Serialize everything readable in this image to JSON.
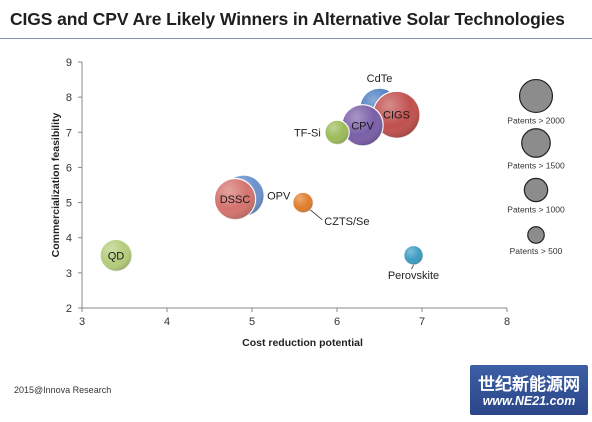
{
  "title": "CIGS and CPV Are Likely Winners in Alternative Solar Technologies",
  "footer": "2015@Innova Research",
  "brand": {
    "cn": "世纪新能源网",
    "url": "www.NE21.com"
  },
  "chart_data": {
    "type": "scatter",
    "xlabel": "Cost reduction potential",
    "ylabel": "Commercialization feasibility",
    "xlim": [
      3,
      8
    ],
    "ylim": [
      2,
      9
    ],
    "xticks": [
      3,
      4,
      5,
      6,
      7,
      8
    ],
    "yticks": [
      2,
      3,
      4,
      5,
      6,
      7,
      8,
      9
    ],
    "grid": false,
    "points": [
      {
        "label": "CdTe",
        "x": 6.5,
        "y": 7.7,
        "size": 1800,
        "color": "#4a7cc0",
        "label_pos": "above"
      },
      {
        "label": "CIGS",
        "x": 6.7,
        "y": 7.5,
        "size": 2600,
        "color": "#c0504d",
        "label_pos": "inside"
      },
      {
        "label": "CPV",
        "x": 6.3,
        "y": 7.2,
        "size": 2000,
        "color": "#7a5fa8",
        "label_pos": "inside"
      },
      {
        "label": "TF-Si",
        "x": 6.0,
        "y": 7.0,
        "size": 700,
        "color": "#9bbb59",
        "label_pos": "left"
      },
      {
        "label": "OPV",
        "x": 4.9,
        "y": 5.2,
        "size": 2000,
        "color": "#6b92cf",
        "label_pos": "right"
      },
      {
        "label": "DSSC",
        "x": 4.8,
        "y": 5.1,
        "size": 2000,
        "color": "#d4736e",
        "label_pos": "inside"
      },
      {
        "label": "CZTS/Se",
        "x": 5.6,
        "y": 5.0,
        "size": 500,
        "color": "#e07d2c",
        "label_pos": "below-right"
      },
      {
        "label": "QD",
        "x": 3.4,
        "y": 3.5,
        "size": 1200,
        "color": "#b4cc7a",
        "label_pos": "inside"
      },
      {
        "label": "Perovskite",
        "x": 6.9,
        "y": 3.5,
        "size": 450,
        "color": "#3e9cc2",
        "label_pos": "below"
      }
    ],
    "size_legend": [
      {
        "label": "Patents > 2000",
        "size": 2000
      },
      {
        "label": "Patents > 1500",
        "size": 1500
      },
      {
        "label": "Patents > 1000",
        "size": 1000
      },
      {
        "label": "Patents > 500",
        "size": 500
      }
    ],
    "legend_position": "right"
  }
}
